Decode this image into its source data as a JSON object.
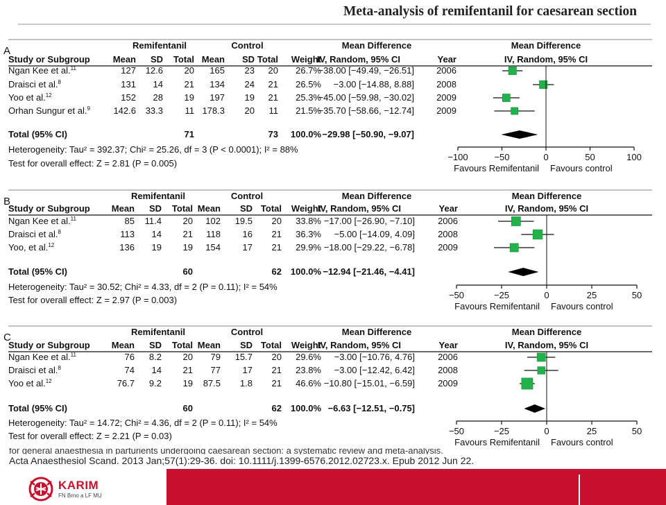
{
  "slide": {
    "title": "Meta-analysis of remifentanil for caesarean section",
    "citation_line1": "for general anaesthesia in parturients undergoing caesarean section: a systematic review and meta-analysis.",
    "citation_line2": "Acta Anaesthesiol Scand. 2013 Jan;57(1):29-36. doi: 10.1111/j.1399-6576.2012.02723.x. Epub 2012 Jun 22.",
    "footer": {
      "logo_name": "KARIM",
      "logo_sub": "FN Brno a LF MU",
      "accent": "#c8102e"
    }
  },
  "chart_data": [
    {
      "type": "forest",
      "panel": "A",
      "group1": "Remifentanil",
      "group2": "Control",
      "effect_header": "Mean Difference",
      "effect_sub": "IV, Random, 95% CI",
      "col_headers": [
        "Study or Subgroup",
        "Mean",
        "SD",
        "Total",
        "Mean",
        "SD",
        "Total",
        "Weight",
        "IV, Random, 95% CI",
        "Year"
      ],
      "studies": [
        {
          "name": "Ngan Kee et al.",
          "ref": "11",
          "m1": "127",
          "sd1": "12.6",
          "n1": "20",
          "m2": "165",
          "sd2": "23",
          "n2": "20",
          "weight": "26.7%",
          "ci_text": "−38.00 [−49.49, −26.51]",
          "year": "2006",
          "md": -38.0,
          "lo": -49.49,
          "hi": -26.51
        },
        {
          "name": "Draisci et al.",
          "ref": "8",
          "m1": "131",
          "sd1": "14",
          "n1": "21",
          "m2": "134",
          "sd2": "24",
          "n2": "21",
          "weight": "26.5%",
          "ci_text": "−3.00 [−14.88, 8.88]",
          "year": "2008",
          "md": -3.0,
          "lo": -14.88,
          "hi": 8.88
        },
        {
          "name": "Yoo et al.",
          "ref": "12",
          "m1": "152",
          "sd1": "28",
          "n1": "19",
          "m2": "197",
          "sd2": "19",
          "n2": "21",
          "weight": "25.3%",
          "ci_text": "−45.00 [−59.98, −30.02]",
          "year": "2009",
          "md": -45.0,
          "lo": -59.98,
          "hi": -30.02
        },
        {
          "name": "Orhan Sungur et al.",
          "ref": "9",
          "m1": "142.6",
          "sd1": "33.3",
          "n1": "11",
          "m2": "178.3",
          "sd2": "20",
          "n2": "11",
          "weight": "21.5%",
          "ci_text": "−35.70 [−58.66, −12.74]",
          "year": "2009",
          "md": -35.7,
          "lo": -58.66,
          "hi": -12.74
        }
      ],
      "total": {
        "label": "Total (95% CI)",
        "n1": "71",
        "n2": "73",
        "weight": "100.0%",
        "ci_text": "−29.98 [−50.90, −9.07]",
        "md": -29.98,
        "lo": -50.9,
        "hi": -9.07
      },
      "heterogeneity": "Heterogeneity: Tau² = 392.37; Chi² = 25.26, df = 3 (P < 0.0001); I² = 88%",
      "overall_effect": "Test for overall effect: Z = 2.81 (P = 0.005)",
      "xlim": [
        -100,
        100
      ],
      "ticks": [
        -100,
        -50,
        0,
        50,
        100
      ],
      "tick_labels": [
        "−100",
        "−50",
        "0",
        "50",
        "100"
      ],
      "favours_left": "Favours Remifentanil",
      "favours_right": "Favours control"
    },
    {
      "type": "forest",
      "panel": "B",
      "group1": "Remifentanil",
      "group2": "Control",
      "effect_header": "Mean Difference",
      "effect_sub": "IV, Random, 95% CI",
      "col_headers": [
        "Study or Subgroup",
        "Mean",
        "SD",
        "Total",
        "Mean",
        "SD",
        "Total",
        "Weight",
        "IV, Random, 95% CI",
        "Year"
      ],
      "studies": [
        {
          "name": "Ngan Kee et al.",
          "ref": "11",
          "m1": "85",
          "sd1": "11.4",
          "n1": "20",
          "m2": "102",
          "sd2": "19.5",
          "n2": "20",
          "weight": "33.8%",
          "ci_text": "−17.00 [−26.90, −7.10]",
          "year": "2006",
          "md": -17.0,
          "lo": -26.9,
          "hi": -7.1
        },
        {
          "name": "Draisci et al.",
          "ref": "8",
          "m1": "113",
          "sd1": "14",
          "n1": "21",
          "m2": "118",
          "sd2": "16",
          "n2": "21",
          "weight": "36.3%",
          "ci_text": "−5.00 [−14.09, 4.09]",
          "year": "2008",
          "md": -5.0,
          "lo": -14.09,
          "hi": 4.09
        },
        {
          "name": "Yoo, et al.",
          "ref": "12",
          "m1": "136",
          "sd1": "19",
          "n1": "19",
          "m2": "154",
          "sd2": "17",
          "n2": "21",
          "weight": "29.9%",
          "ci_text": "−18.00 [−29.22, −6.78]",
          "year": "2009",
          "md": -18.0,
          "lo": -29.22,
          "hi": -6.78
        }
      ],
      "total": {
        "label": "Total (95% CI)",
        "n1": "60",
        "n2": "62",
        "weight": "100.0%",
        "ci_text": "−12.94 [−21.46, −4.41]",
        "md": -12.94,
        "lo": -21.46,
        "hi": -4.41
      },
      "heterogeneity": "Heterogeneity: Tau² = 30.52; Chi² = 4.33, df = 2 (P = 0.11); I² = 54%",
      "overall_effect": "Test for overall effect: Z = 2.97 (P = 0.003)",
      "xlim": [
        -50,
        50
      ],
      "ticks": [
        -50,
        -25,
        0,
        25,
        50
      ],
      "tick_labels": [
        "−50",
        "−25",
        "0",
        "25",
        "50"
      ],
      "favours_left": "Favours Remifentanil",
      "favours_right": "Favours control"
    },
    {
      "type": "forest",
      "panel": "C",
      "group1": "Remifentanil",
      "group2": "Control",
      "effect_header": "Mean Difference",
      "effect_sub": "IV, Random, 95% CI",
      "col_headers": [
        "Study or Subgroup",
        "Mean",
        "SD",
        "Total",
        "Mean",
        "SD",
        "Total",
        "Weight",
        "IV, Random, 95% CI",
        "Year"
      ],
      "studies": [
        {
          "name": "Ngan Kee et al.",
          "ref": "11",
          "m1": "76",
          "sd1": "8.2",
          "n1": "20",
          "m2": "79",
          "sd2": "15.7",
          "n2": "20",
          "weight": "29.6%",
          "ci_text": "−3.00 [−10.76, 4.76]",
          "year": "2006",
          "md": -3.0,
          "lo": -10.76,
          "hi": 4.76
        },
        {
          "name": "Draisci et al.",
          "ref": "8",
          "m1": "74",
          "sd1": "14",
          "n1": "21",
          "m2": "77",
          "sd2": "17",
          "n2": "21",
          "weight": "23.8%",
          "ci_text": "−3.00 [−12.42, 6.42]",
          "year": "2008",
          "md": -3.0,
          "lo": -12.42,
          "hi": 6.42
        },
        {
          "name": "Yoo et al.",
          "ref": "12",
          "m1": "76.7",
          "sd1": "9.2",
          "n1": "19",
          "m2": "87.5",
          "sd2": "1.8",
          "n2": "21",
          "weight": "46.6%",
          "ci_text": "−10.80 [−15.01, −6.59]",
          "year": "2009",
          "md": -10.8,
          "lo": -15.01,
          "hi": -6.59
        }
      ],
      "total": {
        "label": "Total (95% CI)",
        "n1": "60",
        "n2": "62",
        "weight": "100.0%",
        "ci_text": "−6.63 [−12.51, −0.75]",
        "md": -6.63,
        "lo": -12.51,
        "hi": -0.75
      },
      "heterogeneity": "Heterogeneity: Tau² = 14.72; Chi² = 4.36, df = 2 (P = 0.11); I² = 54%",
      "overall_effect": "Test for overall effect: Z = 2.21 (P = 0.03)",
      "xlim": [
        -50,
        50
      ],
      "ticks": [
        -50,
        -25,
        0,
        25,
        50
      ],
      "tick_labels": [
        "−50",
        "−25",
        "0",
        "25",
        "50"
      ],
      "favours_left": "Favours Remifentanil",
      "favours_right": "Favours control"
    }
  ]
}
